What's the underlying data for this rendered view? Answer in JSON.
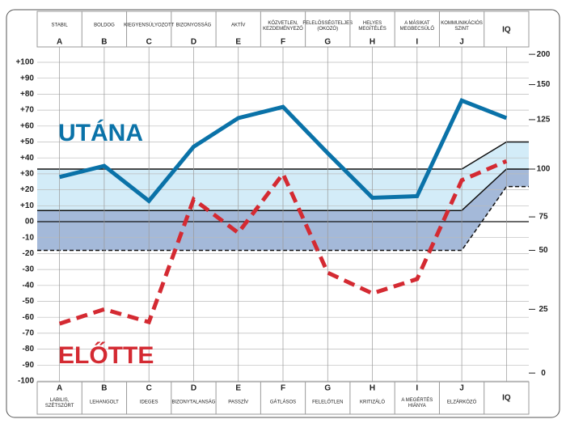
{
  "chart_data": {
    "type": "line",
    "annotations": [
      "UTÁNA",
      "ELŐTTE"
    ],
    "letters": [
      "A",
      "B",
      "C",
      "D",
      "E",
      "F",
      "G",
      "H",
      "I",
      "J",
      "IQ"
    ],
    "categories": [
      "STABIL",
      "BOLDOG",
      "KIEGYENSÚLYOZOTT",
      "BIZONYOSSÁG",
      "AKTÍV",
      "KÖZVETLEN, KEZDEMÉNYEZŐ",
      "FELELŐSSÉGTELJES (OKOZÓ)",
      "HELYES MEGÍTÉLÉS",
      "A MÁSIKAT MEGBECSÜLŐ",
      "KOMMUNIKÁCIÓS SZINT",
      null
    ],
    "opposites": [
      "LABILIS, SZÉTSZÓRT",
      "LEHANGOLT",
      "IDEGES",
      "BIZONYTALANSÁG",
      "PASSZÍV",
      "GÁTLÁSOS",
      "FELELŐTLEN",
      "KRITIZÁLÓ",
      "A MEGÉRTÉS HIÁNYA",
      "ELZÁRKÓZÓ",
      null
    ],
    "series": [
      {
        "name": "UTÁNA",
        "color": "#0a72a8",
        "dash": false,
        "values": [
          28,
          35,
          13,
          47,
          65,
          72,
          43,
          15,
          16,
          76,
          65
        ]
      },
      {
        "name": "ELŐTTE",
        "color": "#d42a32",
        "dash": true,
        "values": [
          -64,
          -55,
          -63,
          14,
          -7,
          30,
          -32,
          -45,
          -36,
          26,
          38
        ]
      }
    ],
    "ylim": [
      -100,
      100
    ],
    "yticks": [
      {
        "value": 100,
        "label": "+100"
      },
      {
        "value": 90,
        "label": "+90"
      },
      {
        "value": 80,
        "label": "+80"
      },
      {
        "value": 70,
        "label": "+70"
      },
      {
        "value": 60,
        "label": "+60"
      },
      {
        "value": 50,
        "label": "+50"
      },
      {
        "value": 40,
        "label": "+40"
      },
      {
        "value": 30,
        "label": "+30"
      },
      {
        "value": 20,
        "label": "+20"
      },
      {
        "value": 10,
        "label": "+10"
      },
      {
        "value": 0,
        "label": "00"
      },
      -10,
      -20,
      -30,
      -40,
      -50,
      -60,
      -70,
      -80,
      -90,
      -100
    ],
    "iq_scale": [
      {
        "iq": 200,
        "at": 105
      },
      {
        "iq": 150,
        "at": 86
      },
      {
        "iq": 125,
        "at": 64
      },
      {
        "iq": 100,
        "at": 33
      },
      {
        "iq": 75,
        "at": 3
      },
      {
        "iq": 50,
        "at": -18
      },
      {
        "iq": 25,
        "at": -55
      },
      {
        "iq": 0,
        "at": -95
      }
    ],
    "bands": [
      {
        "top": 33,
        "bottom": 7,
        "iq_top": 50,
        "iq_bottom": 33,
        "color": "#d3ecf8"
      },
      {
        "top": 7,
        "bottom": -18,
        "iq_top": 33,
        "iq_bottom": 22,
        "color": "#a4b9d9"
      }
    ],
    "grid": true
  }
}
